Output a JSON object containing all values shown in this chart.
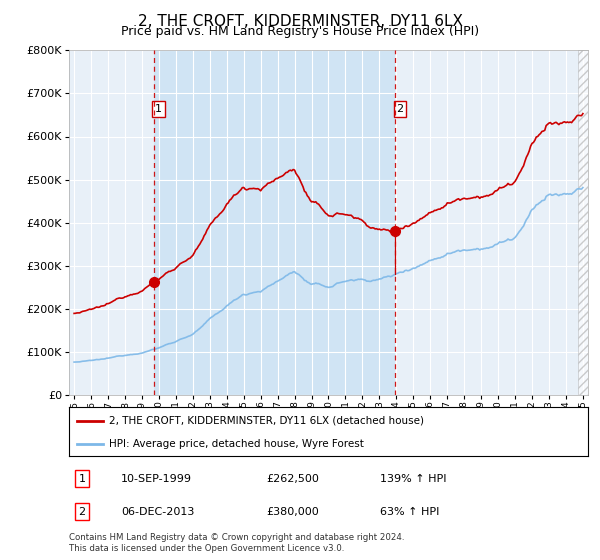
{
  "title": "2, THE CROFT, KIDDERMINSTER, DY11 6LX",
  "subtitle": "Price paid vs. HM Land Registry's House Price Index (HPI)",
  "legend_line1": "2, THE CROFT, KIDDERMINSTER, DY11 6LX (detached house)",
  "legend_line2": "HPI: Average price, detached house, Wyre Forest",
  "transaction1_date": "10-SEP-1999",
  "transaction1_price": 262500,
  "transaction1_hpi": "139% ↑ HPI",
  "transaction2_date": "06-DEC-2013",
  "transaction2_price": 380000,
  "transaction2_hpi": "63% ↑ HPI",
  "footnote": "Contains HM Land Registry data © Crown copyright and database right 2024.\nThis data is licensed under the Open Government Licence v3.0.",
  "hpi_color": "#7db8e8",
  "price_color": "#cc0000",
  "vline_color": "#cc0000",
  "plot_bg_color": "#e8f0f8",
  "highlight_bg_color": "#d0e4f4",
  "ylim": [
    0,
    800000
  ],
  "yticks": [
    0,
    100000,
    200000,
    300000,
    400000,
    500000,
    600000,
    700000,
    800000
  ],
  "transaction1_x": 1999.69,
  "transaction2_x": 2013.92,
  "xmin": 1994.7,
  "xmax": 2025.3
}
